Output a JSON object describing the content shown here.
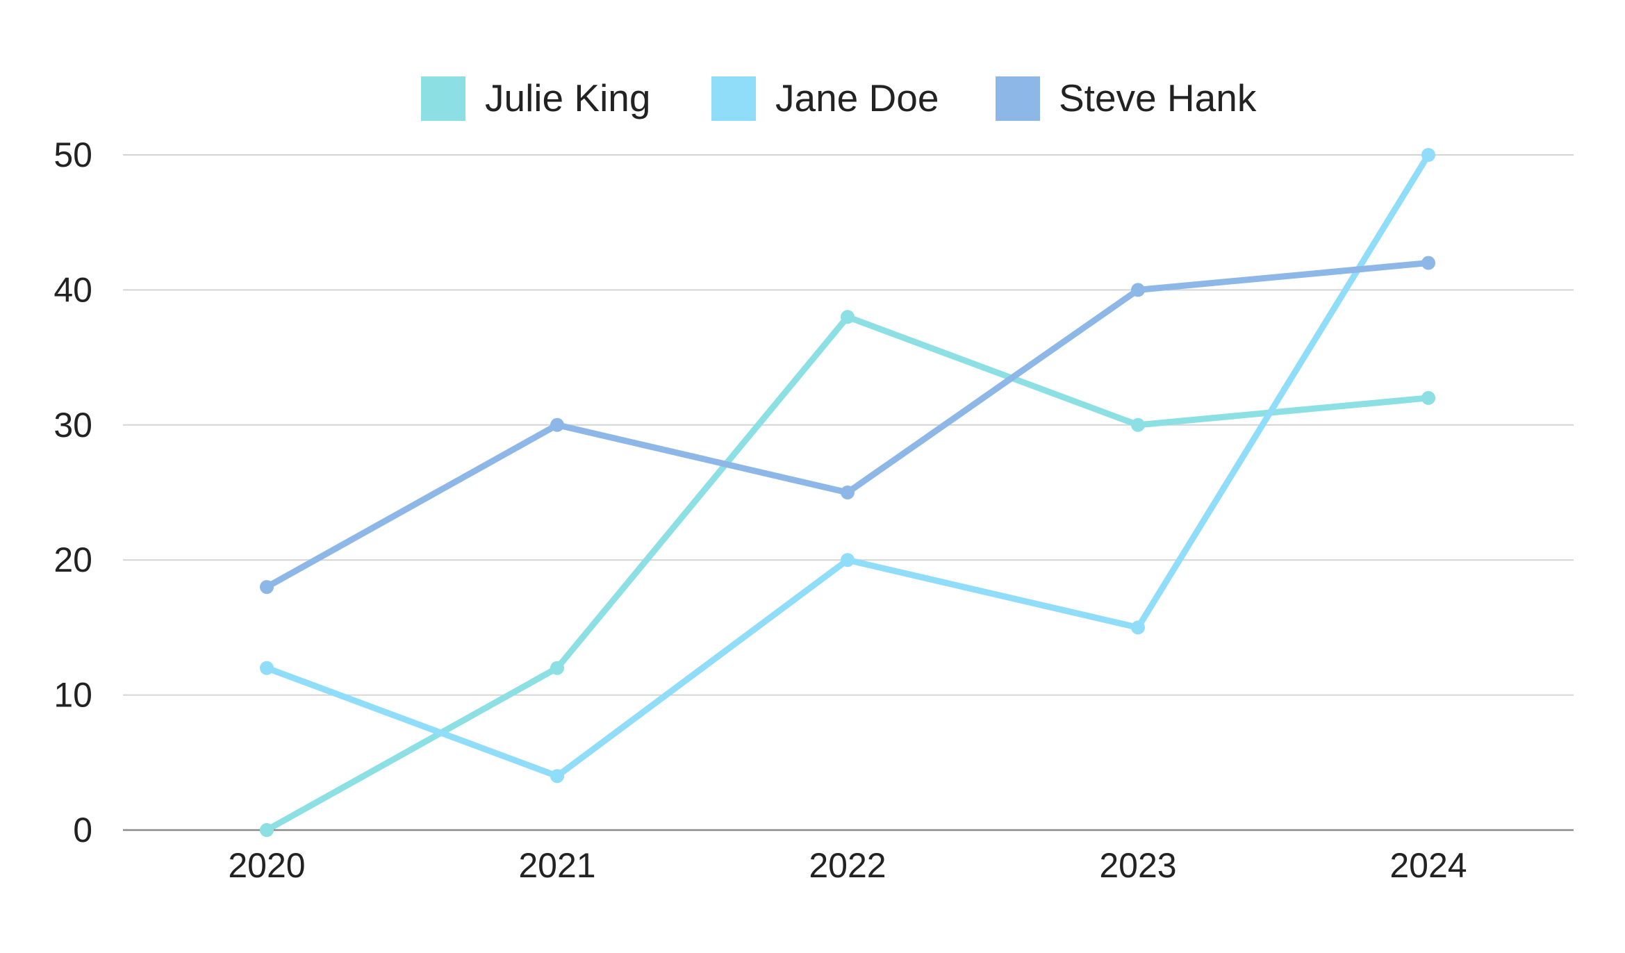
{
  "chart_data": {
    "type": "line",
    "title": "",
    "xlabel": "",
    "ylabel": "",
    "categories": [
      "2020",
      "2021",
      "2022",
      "2023",
      "2024"
    ],
    "ylim": [
      0,
      50
    ],
    "yticks": [
      0,
      10,
      20,
      30,
      40,
      50
    ],
    "grid": true,
    "legend_position": "top-center",
    "series": [
      {
        "name": "Julie King",
        "color": "#8ce0e3",
        "values": [
          0,
          12,
          38,
          30,
          32
        ]
      },
      {
        "name": "Jane Doe",
        "color": "#90ddf9",
        "values": [
          12,
          4,
          20,
          15,
          50
        ]
      },
      {
        "name": "Steve Hank",
        "color": "#8db7e6",
        "values": [
          18,
          30,
          25,
          40,
          42
        ]
      }
    ]
  }
}
